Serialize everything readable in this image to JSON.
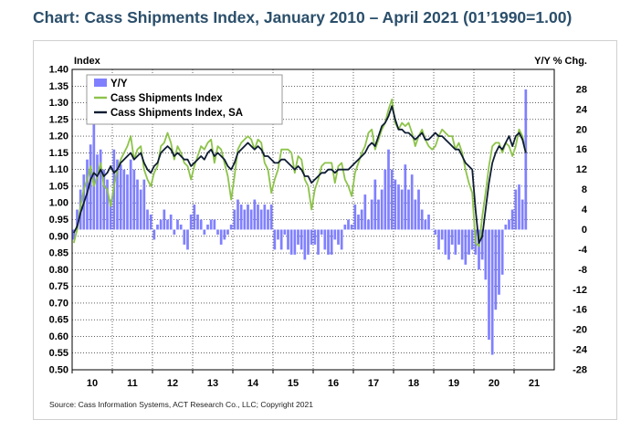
{
  "title": "Chart: Cass Shipments Index, January 2010 – April 2021 (01’1990=1.00)",
  "source": "Source: Cass Information Systems, ACT Research Co., LLC; Copyright 2021",
  "colors": {
    "title": "#2b4f6b",
    "yy_bars": "#8080ff",
    "nsa_line": "#8dc34a",
    "sa_line": "#0f1d33",
    "grid": "#000000"
  },
  "chart_data": {
    "type": "line+bar",
    "left_axis": {
      "label": "Index",
      "ylim": [
        0.5,
        1.4
      ],
      "ticks": [
        "1.40",
        "1.35",
        "1.30",
        "1.25",
        "1.20",
        "1.15",
        "1.10",
        "1.05",
        "1.00",
        "0.95",
        "0.90",
        "0.85",
        "0.80",
        "0.75",
        "0.70",
        "0.65",
        "0.60",
        "0.55",
        "0.50"
      ]
    },
    "right_axis": {
      "label": "Y/Y % Chg.",
      "ylim": [
        -28,
        32
      ],
      "ticks": [
        "28",
        "24",
        "20",
        "16",
        "12",
        "8",
        "4",
        "0",
        "-4",
        "-8",
        "-12",
        "-16",
        "-20",
        "-24",
        "-28"
      ]
    },
    "x_axis": {
      "labels": [
        "10",
        "11",
        "12",
        "13",
        "14",
        "15",
        "16",
        "17",
        "18",
        "19",
        "20",
        "21"
      ],
      "start_year": 2010,
      "end_year": 2021,
      "last_month": 4
    },
    "grid": "dotted",
    "legend_placement": "top-left",
    "legend": [
      "Y/Y",
      "Cass Shipments Index",
      "Cass Shipments Index, SA"
    ],
    "series": [
      {
        "name": "Y/Y",
        "kind": "bar",
        "values": [
          -2,
          4,
          8,
          11,
          14,
          17,
          22,
          15,
          16,
          12,
          10,
          6,
          16,
          14,
          13,
          12,
          11,
          14,
          12,
          10,
          8,
          10,
          4,
          3,
          -2,
          1,
          2,
          4,
          2,
          3,
          -1,
          2,
          1,
          -3,
          -4,
          3,
          5,
          3,
          2,
          -1,
          1,
          2,
          2,
          -1,
          -3,
          -2,
          -1,
          1,
          4,
          6,
          5,
          4,
          5,
          4,
          6,
          5,
          4,
          5,
          4,
          5,
          -4,
          -2,
          -4,
          -1,
          -4,
          -5,
          -5,
          -3,
          -4,
          -6,
          -5,
          -3,
          -3,
          -5,
          -1,
          -4,
          -5,
          -5,
          -2,
          -3,
          -4,
          1,
          2,
          1,
          5,
          3,
          4,
          7,
          2,
          6,
          10,
          6,
          8,
          12,
          16,
          12,
          10,
          9,
          8,
          13,
          8,
          11,
          6,
          8,
          4,
          2,
          3,
          0,
          -1,
          -4,
          -2,
          -5,
          -6,
          -3,
          -5,
          -3,
          -6,
          -7,
          -5,
          -4,
          -5,
          -8,
          -6,
          -10,
          -22,
          -25,
          -16,
          -13,
          -9,
          1,
          2,
          4,
          8,
          9,
          6,
          28
        ]
      },
      {
        "name": "Cass Shipments Index",
        "kind": "line",
        "values": [
          0.88,
          0.92,
          0.99,
          1.04,
          1.07,
          1.11,
          1.05,
          1.08,
          1.12,
          1.05,
          1.04,
          0.99,
          1.05,
          1.1,
          1.13,
          1.15,
          1.17,
          1.2,
          1.13,
          1.16,
          1.17,
          1.1,
          1.07,
          1.05,
          1.09,
          1.11,
          1.17,
          1.18,
          1.21,
          1.18,
          1.13,
          1.17,
          1.15,
          1.12,
          1.11,
          1.07,
          1.11,
          1.14,
          1.17,
          1.16,
          1.18,
          1.19,
          1.12,
          1.17,
          1.16,
          1.12,
          1.08,
          1.01,
          1.08,
          1.16,
          1.18,
          1.19,
          1.2,
          1.19,
          1.16,
          1.19,
          1.18,
          1.12,
          1.1,
          1.03,
          1.07,
          1.1,
          1.16,
          1.16,
          1.16,
          1.15,
          1.09,
          1.14,
          1.13,
          1.07,
          1.05,
          0.98,
          1.04,
          1.07,
          1.11,
          1.12,
          1.12,
          1.12,
          1.06,
          1.11,
          1.12,
          1.07,
          1.05,
          1.02,
          1.09,
          1.12,
          1.15,
          1.17,
          1.21,
          1.22,
          1.16,
          1.19,
          1.22,
          1.24,
          1.28,
          1.31,
          1.24,
          1.22,
          1.24,
          1.23,
          1.24,
          1.21,
          1.17,
          1.2,
          1.22,
          1.19,
          1.17,
          1.16,
          1.17,
          1.2,
          1.22,
          1.21,
          1.2,
          1.2,
          1.16,
          1.18,
          1.15,
          1.1,
          1.06,
          1.03,
          0.88,
          0.87,
          0.96,
          1.03,
          1.11,
          1.17,
          1.18,
          1.18,
          1.15,
          1.18,
          1.17,
          1.14,
          1.17,
          1.22,
          1.2,
          1.15
        ]
      },
      {
        "name": "Cass Shipments Index, SA",
        "kind": "line",
        "values": [
          0.91,
          0.93,
          0.97,
          1.0,
          1.03,
          1.07,
          1.09,
          1.08,
          1.1,
          1.08,
          1.09,
          1.11,
          1.09,
          1.1,
          1.12,
          1.13,
          1.14,
          1.15,
          1.13,
          1.14,
          1.15,
          1.12,
          1.1,
          1.09,
          1.11,
          1.12,
          1.15,
          1.16,
          1.17,
          1.16,
          1.14,
          1.15,
          1.14,
          1.13,
          1.13,
          1.11,
          1.12,
          1.13,
          1.14,
          1.13,
          1.15,
          1.16,
          1.14,
          1.15,
          1.14,
          1.13,
          1.11,
          1.1,
          1.12,
          1.15,
          1.16,
          1.17,
          1.18,
          1.17,
          1.16,
          1.17,
          1.16,
          1.14,
          1.14,
          1.13,
          1.12,
          1.12,
          1.13,
          1.13,
          1.12,
          1.11,
          1.1,
          1.11,
          1.1,
          1.08,
          1.08,
          1.06,
          1.07,
          1.08,
          1.09,
          1.09,
          1.1,
          1.1,
          1.09,
          1.1,
          1.1,
          1.1,
          1.1,
          1.11,
          1.12,
          1.13,
          1.14,
          1.15,
          1.17,
          1.18,
          1.17,
          1.2,
          1.23,
          1.24,
          1.26,
          1.29,
          1.25,
          1.22,
          1.22,
          1.21,
          1.21,
          1.2,
          1.19,
          1.2,
          1.21,
          1.19,
          1.19,
          1.2,
          1.21,
          1.2,
          1.2,
          1.19,
          1.18,
          1.17,
          1.16,
          1.16,
          1.14,
          1.12,
          1.11,
          1.1,
          0.98,
          0.88,
          0.9,
          0.98,
          1.06,
          1.12,
          1.15,
          1.17,
          1.16,
          1.18,
          1.2,
          1.17,
          1.2,
          1.21,
          1.19,
          1.15
        ]
      }
    ]
  }
}
